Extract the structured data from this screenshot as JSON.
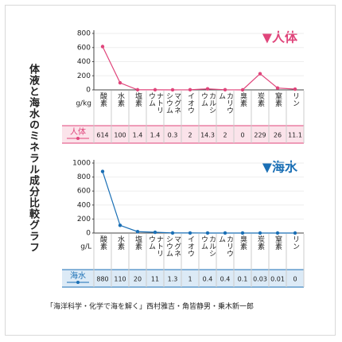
{
  "title": "体液と海水のミネラル成分比較グラフ",
  "source": "「海洋科学・化学で海を解く」西村雅吉・角皆静男・乗木新一郎",
  "chart_data": [
    {
      "type": "line",
      "title": "▼人体",
      "y_unit": "g/kg",
      "categories": [
        "酸素",
        "水素",
        "塩素",
        "ナトリウム",
        "マグネシウム",
        "イオウ",
        "カルシウム",
        "カリウム",
        "臭素",
        "炭素",
        "窒素",
        "リン"
      ],
      "series": [
        {
          "name": "人体",
          "color": "#e0457b",
          "values": [
            614,
            100,
            1.4,
            1.4,
            0.3,
            2,
            14.3,
            2,
            0,
            229,
            26,
            11.1
          ]
        }
      ],
      "ylim": [
        0,
        800
      ],
      "yticks": [
        0,
        200,
        400,
        600,
        800
      ]
    },
    {
      "type": "line",
      "title": "▼海水",
      "y_unit": "g/L",
      "categories": [
        "酸素",
        "水素",
        "塩素",
        "ナトリウム",
        "マグネシウム",
        "イオウ",
        "カルシウム",
        "カリウム",
        "臭素",
        "炭素",
        "窒素",
        "リン"
      ],
      "series": [
        {
          "name": "海水",
          "color": "#1a6fb5",
          "values": [
            880,
            110,
            20,
            11,
            1.3,
            1,
            0.4,
            0.4,
            0.1,
            0.03,
            0.01,
            0
          ]
        }
      ],
      "ylim": [
        0,
        1000
      ],
      "yticks": [
        0,
        200,
        400,
        600,
        800,
        1000
      ]
    }
  ]
}
